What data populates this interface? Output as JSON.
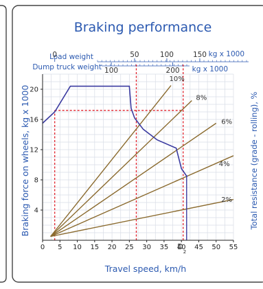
{
  "colors": {
    "accent": "#2b59b0",
    "grid": "#d8dde6",
    "performance_curve": "#3a3aa0",
    "resistance_lines": "#8a6a2e",
    "guide_lines": "#e0202a",
    "panel_border": "#444444"
  },
  "chart_data": {
    "type": "line",
    "title": "Braking performance",
    "xlabel": "Travel speed, km/h",
    "ylabel": "Braking force on wheels, kg x 1000",
    "y2label": "Total resistance (grade - rolling), %",
    "xlim": [
      0,
      55
    ],
    "ylim": [
      0,
      22
    ],
    "x_ticks": [
      0,
      5,
      10,
      15,
      20,
      25,
      30,
      35,
      40,
      45,
      50,
      55
    ],
    "y_ticks": [
      4,
      8,
      12,
      16,
      20
    ],
    "grid": true,
    "top_scales": {
      "load_weight": {
        "label": "Load weight",
        "unit": "kg x 1000",
        "ticks": [
          "0",
          "50",
          "100",
          "150"
        ],
        "tick_x_speed": [
          3.5,
          26.5,
          35.8,
          45.3
        ]
      },
      "dump_truck_weight": {
        "label": "Dump truck weight",
        "unit": "kg x 1000",
        "ticks": [
          "100",
          "200"
        ],
        "tick_x_speed": [
          19.8,
          37.5
        ]
      }
    },
    "series": [
      {
        "kind": "performance_curve",
        "points": [
          [
            0,
            15.5
          ],
          [
            3.5,
            17.0
          ],
          [
            8,
            20.4
          ],
          [
            18,
            20.4
          ],
          [
            25,
            20.4
          ],
          [
            25.5,
            17.5
          ],
          [
            26.5,
            16.2
          ],
          [
            29,
            14.7
          ],
          [
            33,
            13.3
          ],
          [
            38.5,
            12.2
          ],
          [
            40,
            9.5
          ],
          [
            41.5,
            8.5
          ],
          [
            41.8,
            8.5
          ]
        ]
      },
      {
        "kind": "resistance_line",
        "label": "10%",
        "points": [
          [
            2.3,
            0.5
          ],
          [
            37,
            20.5
          ]
        ],
        "label_pos": [
          36.5,
          21.1
        ]
      },
      {
        "kind": "resistance_line",
        "label": "8%",
        "points": [
          [
            2.3,
            0.5
          ],
          [
            43,
            18.5
          ]
        ],
        "label_pos": [
          44.2,
          18.6
        ]
      },
      {
        "kind": "resistance_line",
        "label": "6%",
        "points": [
          [
            2.3,
            0.5
          ],
          [
            50,
            15.5
          ]
        ],
        "label_pos": [
          51.5,
          15.4
        ]
      },
      {
        "kind": "resistance_line",
        "label": "4%",
        "points": [
          [
            2.3,
            0.5
          ],
          [
            55,
            11.2
          ]
        ],
        "label_pos": [
          50.8,
          9.8
        ]
      },
      {
        "kind": "resistance_line",
        "label": "2%",
        "points": [
          [
            2.3,
            0.5
          ],
          [
            55,
            5.4
          ]
        ],
        "label_pos": [
          51.5,
          5.1
        ]
      }
    ],
    "guides": [
      {
        "kind": "vertical",
        "x": 3.5,
        "from_y": 0,
        "to_y": 17.2
      },
      {
        "kind": "horizontal",
        "y": 17.2,
        "from_x": 3.5,
        "to_x": 40.5
      },
      {
        "kind": "vertical",
        "x": 27,
        "from_y": 0,
        "to_y": 23.5
      },
      {
        "kind": "vertical",
        "x": 40.5,
        "from_y": 0,
        "to_y": 23.5
      }
    ],
    "operating_point": {
      "x": 41.5,
      "y_bottom": 0,
      "y_top": 8.5,
      "label": "D",
      "label_sub": "2"
    }
  }
}
